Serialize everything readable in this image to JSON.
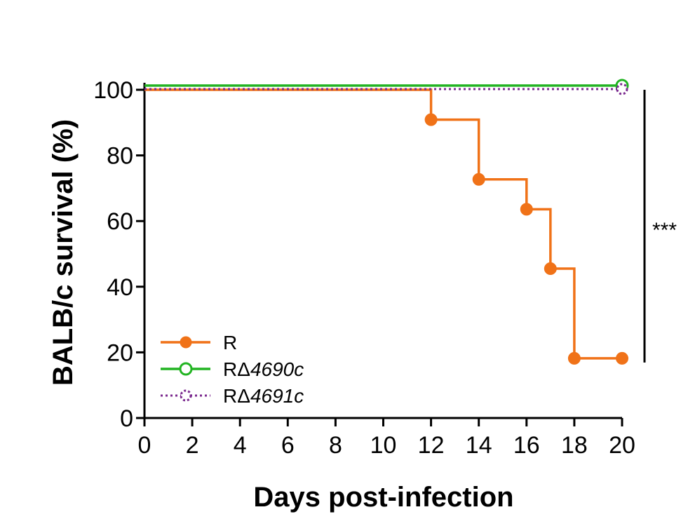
{
  "chart_data": {
    "type": "line",
    "subtype": "kaplan-meier-survival",
    "xlabel": "Days post-infection",
    "ylabel": "BALB/c survival (%)",
    "xlim": [
      0,
      20
    ],
    "ylim": [
      0,
      100
    ],
    "xticks": [
      "0",
      "2",
      "4",
      "6",
      "8",
      "10",
      "12",
      "14",
      "16",
      "18",
      "20"
    ],
    "yticks": [
      "0",
      "20",
      "40",
      "60",
      "80",
      "100"
    ],
    "grid": false,
    "legend_position": "bottom-left",
    "significance_label": "***",
    "series": [
      {
        "name": "R",
        "name_plain": "R",
        "name_italic": "",
        "color": "#f07218",
        "line_style": "solid",
        "marker": "filled-circle",
        "steps": [
          [
            0,
            100
          ],
          [
            12,
            90.9
          ],
          [
            14,
            72.7
          ],
          [
            16,
            63.6
          ],
          [
            17,
            45.5
          ],
          [
            18,
            18.2
          ],
          [
            20,
            18.2
          ]
        ],
        "markers": [
          [
            12,
            90.9
          ],
          [
            14,
            72.7
          ],
          [
            16,
            63.6
          ],
          [
            17,
            45.5
          ],
          [
            18,
            18.2
          ],
          [
            20,
            18.2
          ]
        ]
      },
      {
        "name": "RΔ4690c",
        "name_plain": "RΔ",
        "name_italic": "4690c",
        "color": "#22b422",
        "line_style": "solid",
        "marker": "open-circle",
        "steps": [
          [
            0,
            100
          ],
          [
            20,
            100
          ]
        ],
        "markers": [
          [
            20,
            100
          ]
        ]
      },
      {
        "name": "RΔ4691c",
        "name_plain": "RΔ",
        "name_italic": "4691c",
        "color": "#7b2a8f",
        "line_style": "dotted",
        "marker": "dotted-open-circle",
        "steps": [
          [
            0,
            100
          ],
          [
            20,
            100
          ]
        ],
        "markers": [
          [
            20,
            100
          ]
        ]
      }
    ]
  }
}
